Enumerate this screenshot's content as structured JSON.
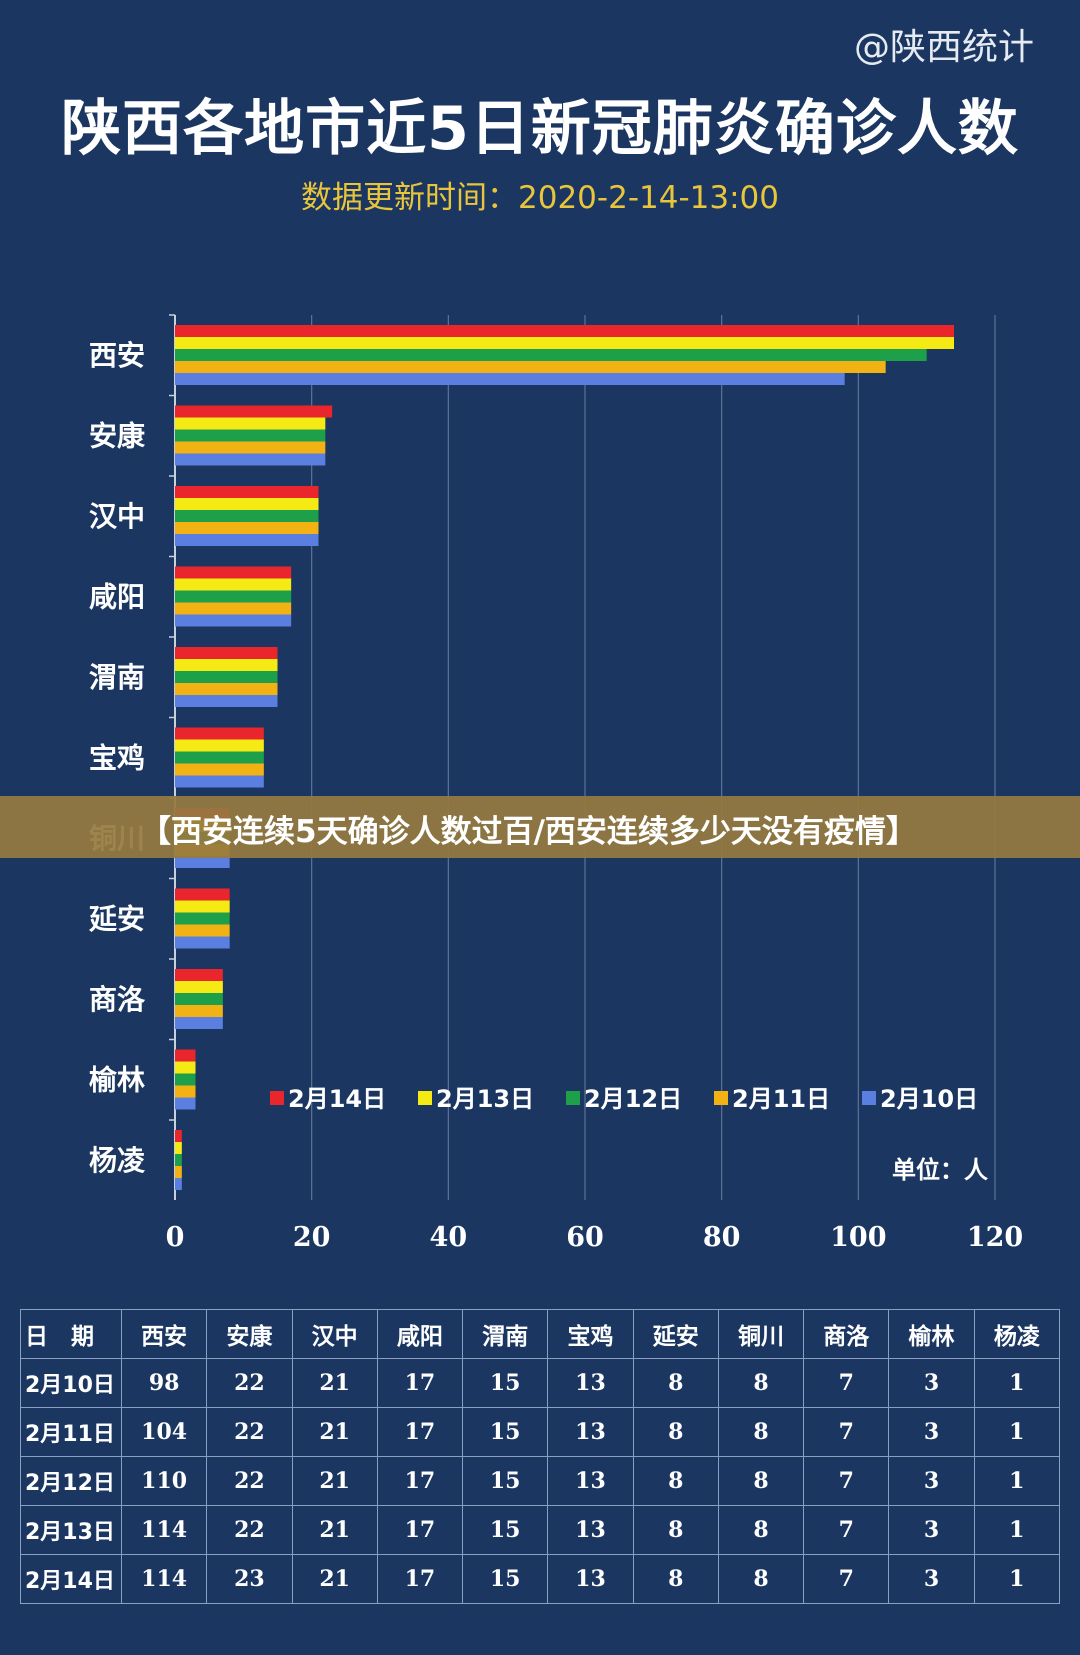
{
  "watermark": "@陕西统计",
  "title": "陕西各地市近5日新冠肺炎确诊人数",
  "subtitle": "数据更新时间：2020-2-14-13:00",
  "banner": "【西安连续5天确诊人数过百/西安连续多少天没有疫情】",
  "chart_data": {
    "type": "bar",
    "orientation": "horizontal",
    "categories": [
      "西安",
      "安康",
      "汉中",
      "咸阳",
      "渭南",
      "宝鸡",
      "铜川",
      "延安",
      "商洛",
      "榆林",
      "杨凌"
    ],
    "series": [
      {
        "name": "2月14日",
        "color": "#e8262b",
        "values": [
          114,
          23,
          21,
          17,
          15,
          13,
          8,
          8,
          7,
          3,
          1
        ]
      },
      {
        "name": "2月13日",
        "color": "#f5ea14",
        "values": [
          114,
          22,
          21,
          17,
          15,
          13,
          8,
          8,
          7,
          3,
          1
        ]
      },
      {
        "name": "2月12日",
        "color": "#1ea04a",
        "values": [
          110,
          22,
          21,
          17,
          15,
          13,
          8,
          8,
          7,
          3,
          1
        ]
      },
      {
        "name": "2月11日",
        "color": "#f3b214",
        "values": [
          104,
          22,
          21,
          17,
          15,
          13,
          8,
          8,
          7,
          3,
          1
        ]
      },
      {
        "name": "2月10日",
        "color": "#5b7fe0",
        "values": [
          98,
          22,
          21,
          17,
          15,
          13,
          8,
          8,
          7,
          3,
          1
        ]
      }
    ],
    "xlim": [
      0,
      120
    ],
    "xticks": [
      "0",
      "20",
      "40",
      "60",
      "80",
      "100",
      "120"
    ],
    "unit_label": "单位：人",
    "grid": true,
    "legend_position": "bottom-right"
  },
  "table": {
    "header": [
      "日　期",
      "西安",
      "安康",
      "汉中",
      "咸阳",
      "渭南",
      "宝鸡",
      "延安",
      "铜川",
      "商洛",
      "榆林",
      "杨凌"
    ],
    "rows": [
      [
        "2月10日",
        "98",
        "22",
        "21",
        "17",
        "15",
        "13",
        "8",
        "8",
        "7",
        "3",
        "1"
      ],
      [
        "2月11日",
        "104",
        "22",
        "21",
        "17",
        "15",
        "13",
        "8",
        "8",
        "7",
        "3",
        "1"
      ],
      [
        "2月12日",
        "110",
        "22",
        "21",
        "17",
        "15",
        "13",
        "8",
        "8",
        "7",
        "3",
        "1"
      ],
      [
        "2月13日",
        "114",
        "22",
        "21",
        "17",
        "15",
        "13",
        "8",
        "8",
        "7",
        "3",
        "1"
      ],
      [
        "2月14日",
        "114",
        "23",
        "21",
        "17",
        "15",
        "13",
        "8",
        "8",
        "7",
        "3",
        "1"
      ]
    ]
  }
}
